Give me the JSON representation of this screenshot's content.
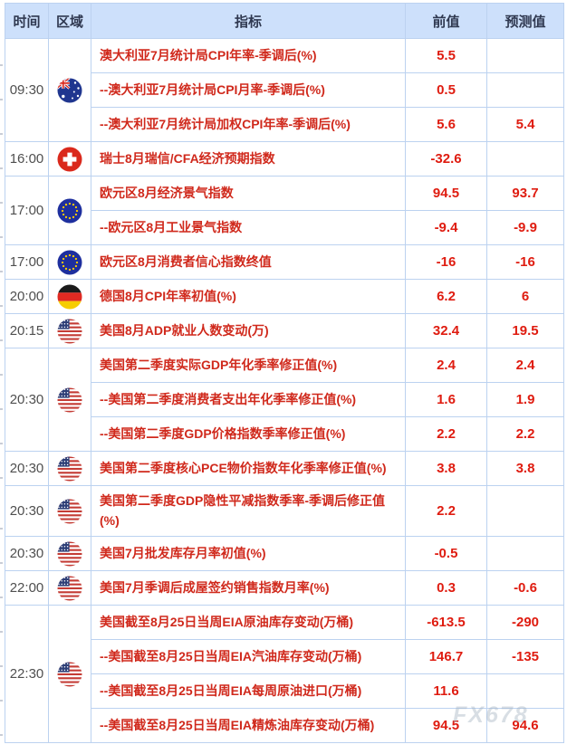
{
  "header": {
    "time": "时间",
    "region": "区域",
    "indicator": "指标",
    "previous": "前值",
    "forecast": "预测值"
  },
  "colors": {
    "border": "#bcd2f0",
    "header_bg": "#cde0fb",
    "header_text": "#2f3850",
    "time_text": "#4f4f4f",
    "indicator_red": "#d0291c",
    "value_red": "#df1c10"
  },
  "watermark": "FX678",
  "flag_icons": {
    "australia": "australia-flag-icon",
    "switzerland": "switzerland-flag-icon",
    "eu": "eu-flag-icon",
    "germany": "germany-flag-icon",
    "usa": "usa-flag-icon"
  },
  "calendar": {
    "groups": [
      {
        "time": "09:30",
        "flag": "australia",
        "rows": [
          {
            "indicator": "澳大利亚7月统计局CPI年率-季调后(%)",
            "previous": "5.5",
            "forecast": ""
          },
          {
            "indicator": "--澳大利亚7月统计局CPI月率-季调后(%)",
            "previous": "0.5",
            "forecast": ""
          },
          {
            "indicator": "--澳大利亚7月统计局加权CPI年率-季调后(%)",
            "previous": "5.6",
            "forecast": "5.4"
          }
        ]
      },
      {
        "time": "16:00",
        "flag": "switzerland",
        "rows": [
          {
            "indicator": "瑞士8月瑞信/CFA经济预期指数",
            "previous": "-32.6",
            "forecast": ""
          }
        ]
      },
      {
        "time": "17:00",
        "flag": "eu",
        "rows": [
          {
            "indicator": "欧元区8月经济景气指数",
            "previous": "94.5",
            "forecast": "93.7"
          },
          {
            "indicator": "--欧元区8月工业景气指数",
            "previous": "-9.4",
            "forecast": "-9.9"
          }
        ]
      },
      {
        "time": "17:00",
        "flag": "eu",
        "rows": [
          {
            "indicator": "欧元区8月消费者信心指数终值",
            "previous": "-16",
            "forecast": "-16"
          }
        ]
      },
      {
        "time": "20:00",
        "flag": "germany",
        "rows": [
          {
            "indicator": "德国8月CPI年率初值(%)",
            "previous": "6.2",
            "forecast": "6"
          }
        ]
      },
      {
        "time": "20:15",
        "flag": "usa",
        "rows": [
          {
            "indicator": "美国8月ADP就业人数变动(万)",
            "previous": "32.4",
            "forecast": "19.5"
          }
        ]
      },
      {
        "time": "20:30",
        "flag": "usa",
        "rows": [
          {
            "indicator": "美国第二季度实际GDP年化季率修正值(%)",
            "previous": "2.4",
            "forecast": "2.4"
          },
          {
            "indicator": "--美国第二季度消费者支出年化季率修正值(%)",
            "previous": "1.6",
            "forecast": "1.9"
          },
          {
            "indicator": "--美国第二季度GDP价格指数季率修正值(%)",
            "previous": "2.2",
            "forecast": "2.2"
          }
        ]
      },
      {
        "time": "20:30",
        "flag": "usa",
        "rows": [
          {
            "indicator": "美国第二季度核心PCE物价指数年化季率修正值(%)",
            "previous": "3.8",
            "forecast": "3.8"
          }
        ]
      },
      {
        "time": "20:30",
        "flag": "usa",
        "rows": [
          {
            "indicator": "美国第二季度GDP隐性平减指数季率-季调后修正值(%)",
            "previous": "2.2",
            "forecast": ""
          }
        ]
      },
      {
        "time": "20:30",
        "flag": "usa",
        "rows": [
          {
            "indicator": "美国7月批发库存月率初值(%)",
            "previous": "-0.5",
            "forecast": ""
          }
        ]
      },
      {
        "time": "22:00",
        "flag": "usa",
        "rows": [
          {
            "indicator": "美国7月季调后成屋签约销售指数月率(%)",
            "previous": "0.3",
            "forecast": "-0.6"
          }
        ]
      },
      {
        "time": "22:30",
        "flag": "usa",
        "rows": [
          {
            "indicator": "美国截至8月25日当周EIA原油库存变动(万桶)",
            "previous": "-613.5",
            "forecast": "-290"
          },
          {
            "indicator": "--美国截至8月25日当周EIA汽油库存变动(万桶)",
            "previous": "146.7",
            "forecast": "-135"
          },
          {
            "indicator": "--美国截至8月25日当周EIA每周原油进口(万桶)",
            "previous": "11.6",
            "forecast": ""
          },
          {
            "indicator": "--美国截至8月25日当周EIA精炼油库存变动(万桶)",
            "previous": "94.5",
            "forecast": "94.6"
          }
        ]
      }
    ]
  }
}
